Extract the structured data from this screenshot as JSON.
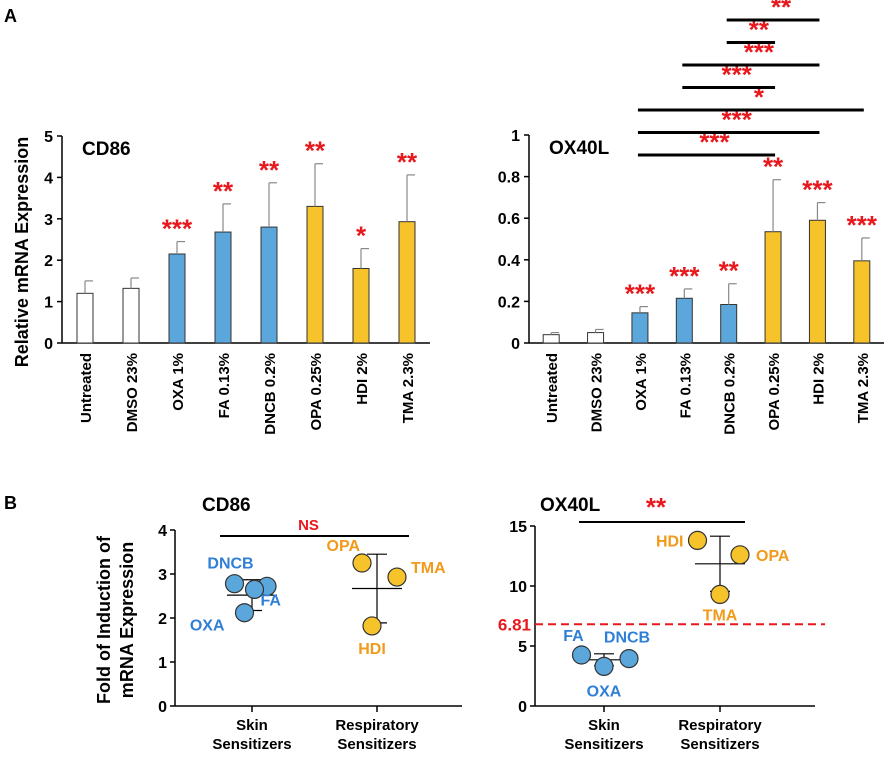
{
  "panels": {
    "A": "A",
    "B": "B"
  },
  "colors": {
    "untreated": "#ffffff",
    "skin": "#5ba7dc",
    "respiratory": "#f6c32a",
    "stars": "#e8191e",
    "skin_label": "#2f7fd6",
    "resp_label": "#f29a1a",
    "threshold": "#e8191e"
  },
  "shared_ylabel": "Relative mRNA Expression",
  "panelB_ylabel": [
    "Fold of Induction of",
    "mRNA Expression"
  ],
  "chart_data": [
    {
      "id": "A-CD86",
      "type": "bar",
      "title": "CD86",
      "ylabel": "Relative mRNA Expression",
      "ylim": [
        0,
        5
      ],
      "yticks": [
        "0",
        "1",
        "2",
        "3",
        "4",
        "5"
      ],
      "categories": [
        "Untreated",
        "DMSO 23%",
        "OXA 1%",
        "FA 0.13%",
        "DNCB 0.2%",
        "OPA 0.25%",
        "HDI 2%",
        "TMA 2.3%"
      ],
      "groups": [
        "untreated",
        "untreated",
        "skin",
        "skin",
        "skin",
        "respiratory",
        "respiratory",
        "respiratory"
      ],
      "values": [
        1.2,
        1.32,
        2.15,
        2.68,
        2.8,
        3.3,
        1.8,
        2.93
      ],
      "errors": [
        0.3,
        0.25,
        0.3,
        0.68,
        1.07,
        1.03,
        0.48,
        1.13
      ],
      "significance": [
        "",
        "",
        "***",
        "**",
        "**",
        "**",
        "*",
        "**"
      ],
      "brackets": []
    },
    {
      "id": "A-OX40L",
      "type": "bar",
      "title": "OX40L",
      "ylim": [
        0,
        1
      ],
      "yticks": [
        "0",
        "0.2",
        "0.4",
        "0.6",
        "0.8",
        "1"
      ],
      "categories": [
        "Untreated",
        "DMSO 23%",
        "OXA 1%",
        "FA 0.13%",
        "DNCB 0.2%",
        "OPA 0.25%",
        "HDI 2%",
        "TMA 2.3%"
      ],
      "groups": [
        "untreated",
        "untreated",
        "skin",
        "skin",
        "skin",
        "respiratory",
        "respiratory",
        "respiratory"
      ],
      "values": [
        0.04,
        0.05,
        0.145,
        0.215,
        0.185,
        0.535,
        0.59,
        0.395
      ],
      "errors": [
        0.01,
        0.015,
        0.03,
        0.045,
        0.1,
        0.25,
        0.085,
        0.11
      ],
      "significance": [
        "",
        "",
        "***",
        "***",
        "**",
        "**",
        "***",
        "***"
      ],
      "brackets": [
        {
          "from": 2,
          "to": 5,
          "label": "***"
        },
        {
          "from": 2,
          "to": 6,
          "label": "***"
        },
        {
          "from": 2,
          "to": 7,
          "label": "*"
        },
        {
          "from": 3,
          "to": 5,
          "label": "***"
        },
        {
          "from": 3,
          "to": 6,
          "label": "***"
        },
        {
          "from": 4,
          "to": 5,
          "label": "**"
        },
        {
          "from": 4,
          "to": 6,
          "label": "**"
        }
      ]
    },
    {
      "id": "B-CD86",
      "type": "scatter",
      "title": "CD86",
      "ylim": [
        0,
        4
      ],
      "yticks": [
        "0",
        "1",
        "2",
        "3",
        "4"
      ],
      "groups": [
        [
          "Skin",
          "Sensitizers"
        ],
        [
          "Respiratory",
          "Sensitizers"
        ]
      ],
      "points": [
        {
          "label": "DNCB",
          "group": 0,
          "y": 2.78,
          "offset": -0.35
        },
        {
          "label": "",
          "group": 0,
          "y": 2.72,
          "offset": 0.3
        },
        {
          "label": "FA",
          "group": 0,
          "y": 2.65,
          "offset": 0.05
        },
        {
          "label": "OXA",
          "group": 0,
          "y": 2.12,
          "offset": -0.15
        },
        {
          "label": "OPA",
          "group": 1,
          "y": 3.25,
          "offset": -0.3
        },
        {
          "label": "TMA",
          "group": 1,
          "y": 2.93,
          "offset": 0.4
        },
        {
          "label": "HDI",
          "group": 1,
          "y": 1.82,
          "offset": -0.1
        }
      ],
      "means": [
        2.52,
        2.67
      ],
      "sd": [
        0.35,
        0.78
      ],
      "comparison": "NS",
      "threshold": null
    },
    {
      "id": "B-OX40L",
      "type": "scatter",
      "title": "OX40L",
      "ylim": [
        0,
        15
      ],
      "yticks": [
        "0",
        "5",
        "10",
        "15"
      ],
      "groups": [
        [
          "Skin",
          "Sensitizers"
        ],
        [
          "Respiratory",
          "Sensitizers"
        ]
      ],
      "points": [
        {
          "label": "FA",
          "group": 0,
          "y": 4.25,
          "offset": -0.45
        },
        {
          "label": "OXA",
          "group": 0,
          "y": 3.3,
          "offset": 0.0
        },
        {
          "label": "DNCB",
          "group": 0,
          "y": 3.95,
          "offset": 0.5
        },
        {
          "label": "HDI",
          "group": 1,
          "y": 13.8,
          "offset": -0.45
        },
        {
          "label": "OPA",
          "group": 1,
          "y": 12.6,
          "offset": 0.4
        },
        {
          "label": "TMA",
          "group": 1,
          "y": 9.3,
          "offset": 0.0
        }
      ],
      "means": [
        3.85,
        11.85
      ],
      "sd": [
        0.5,
        2.3
      ],
      "comparison": "**",
      "threshold": {
        "value": 6.81,
        "label": "6.81"
      }
    }
  ]
}
